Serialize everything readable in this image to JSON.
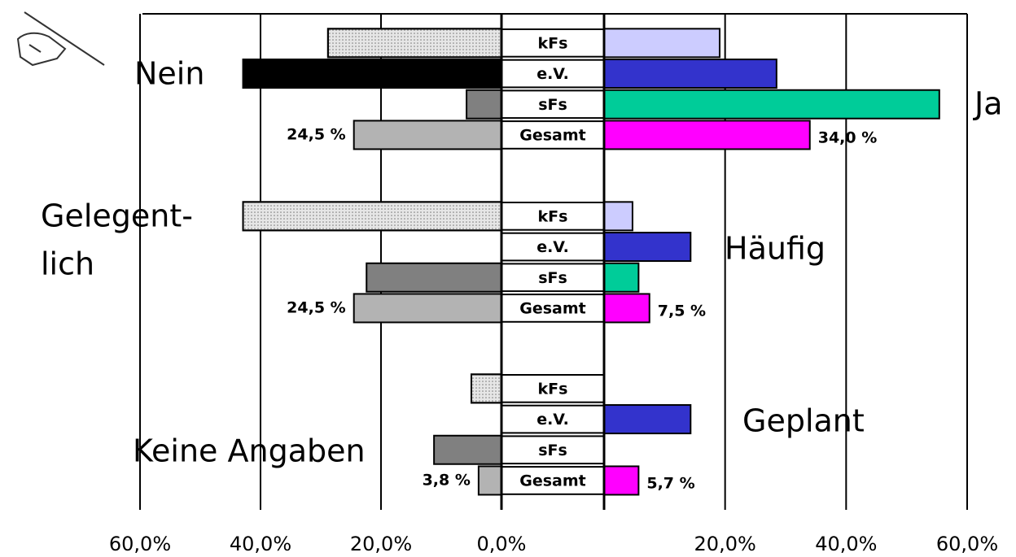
{
  "chart_data": {
    "type": "butterfly",
    "rows": [
      "kFs",
      "e.V.",
      "sFs",
      "Gesamt"
    ],
    "left_colors": [
      "#e6e6e6",
      "#000000",
      "#808080",
      "#b3b3b3"
    ],
    "right_colors": [
      "#ccccff",
      "#3333cc",
      "#00cc99",
      "#ff00ff"
    ],
    "groups": [
      {
        "left_label": [
          "Nein"
        ],
        "right_label": "Ja",
        "left": [
          28.8,
          42.9,
          5.8,
          24.5
        ],
        "right": [
          19.1,
          28.5,
          55.4,
          34.0
        ],
        "left_value_label": "24,5 %",
        "right_value_label": "34,0 %"
      },
      {
        "left_label": [
          "Gelegent-",
          "lich"
        ],
        "right_label": "Häufig",
        "left": [
          42.9,
          null,
          22.4,
          24.5
        ],
        "right": [
          4.7,
          14.3,
          5.7,
          7.5
        ],
        "left_value_label": "24,5 %",
        "right_value_label": "7,5 %"
      },
      {
        "left_label": [
          "Keine Angaben"
        ],
        "right_label": "Geplant",
        "left": [
          5.0,
          null,
          11.2,
          3.8
        ],
        "right": [
          null,
          14.3,
          null,
          5.7
        ],
        "left_value_label": "3,8 %",
        "right_value_label": "5,7 %"
      }
    ],
    "left_xlim": [
      0,
      60
    ],
    "left_xticks": [
      {
        "value": 60,
        "label": "60,0%"
      },
      {
        "value": 40,
        "label": "40,0%"
      },
      {
        "value": 20,
        "label": "20,0%"
      },
      {
        "value": 0,
        "label": "0,0%"
      }
    ],
    "right_xlim": [
      0,
      60
    ],
    "right_xticks": [
      {
        "value": 20,
        "label": "20,0%"
      },
      {
        "value": 40,
        "label": "40,0%"
      },
      {
        "value": 60,
        "label": "60,0%"
      }
    ]
  }
}
